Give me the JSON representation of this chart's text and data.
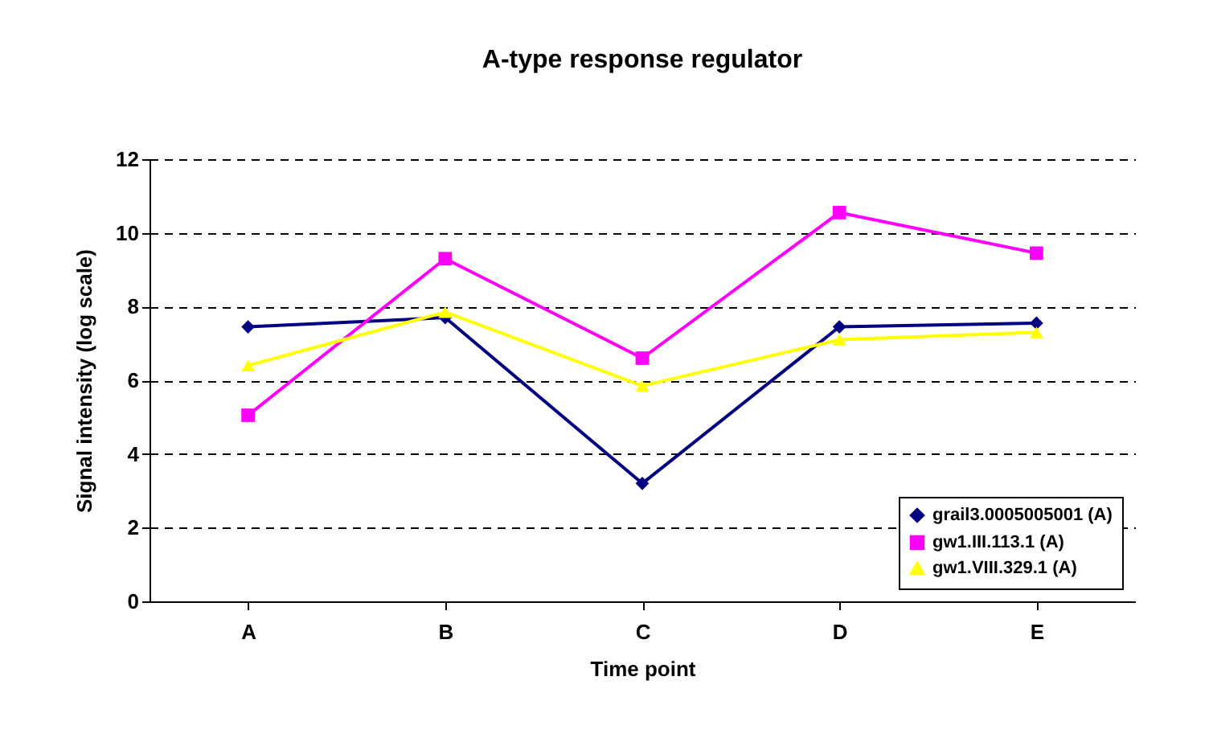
{
  "chart_data": {
    "type": "line",
    "title": "A-type response regulator",
    "xlabel": "Time point",
    "ylabel": "Signal intensity (log scale)",
    "categories": [
      "A",
      "B",
      "C",
      "D",
      "E"
    ],
    "series": [
      {
        "name": "grail3.0005005001 (A)",
        "color": "#000080",
        "marker": "diamond",
        "values": [
          7.45,
          7.7,
          3.2,
          7.45,
          7.55
        ]
      },
      {
        "name": "gw1.III.113.1 (A)",
        "color": "#ff00ff",
        "marker": "square",
        "values": [
          5.05,
          9.3,
          6.6,
          10.55,
          9.45
        ]
      },
      {
        "name": "gw1.VIII.329.1 (A)",
        "color": "#ffff00",
        "marker": "triangle",
        "values": [
          6.4,
          7.85,
          5.85,
          7.1,
          7.3
        ]
      }
    ],
    "ylim": [
      0,
      12
    ],
    "yticks": [
      0,
      2,
      4,
      6,
      8,
      10,
      12
    ],
    "grid": "y",
    "legend": "bottom right",
    "line_style": "solid"
  }
}
